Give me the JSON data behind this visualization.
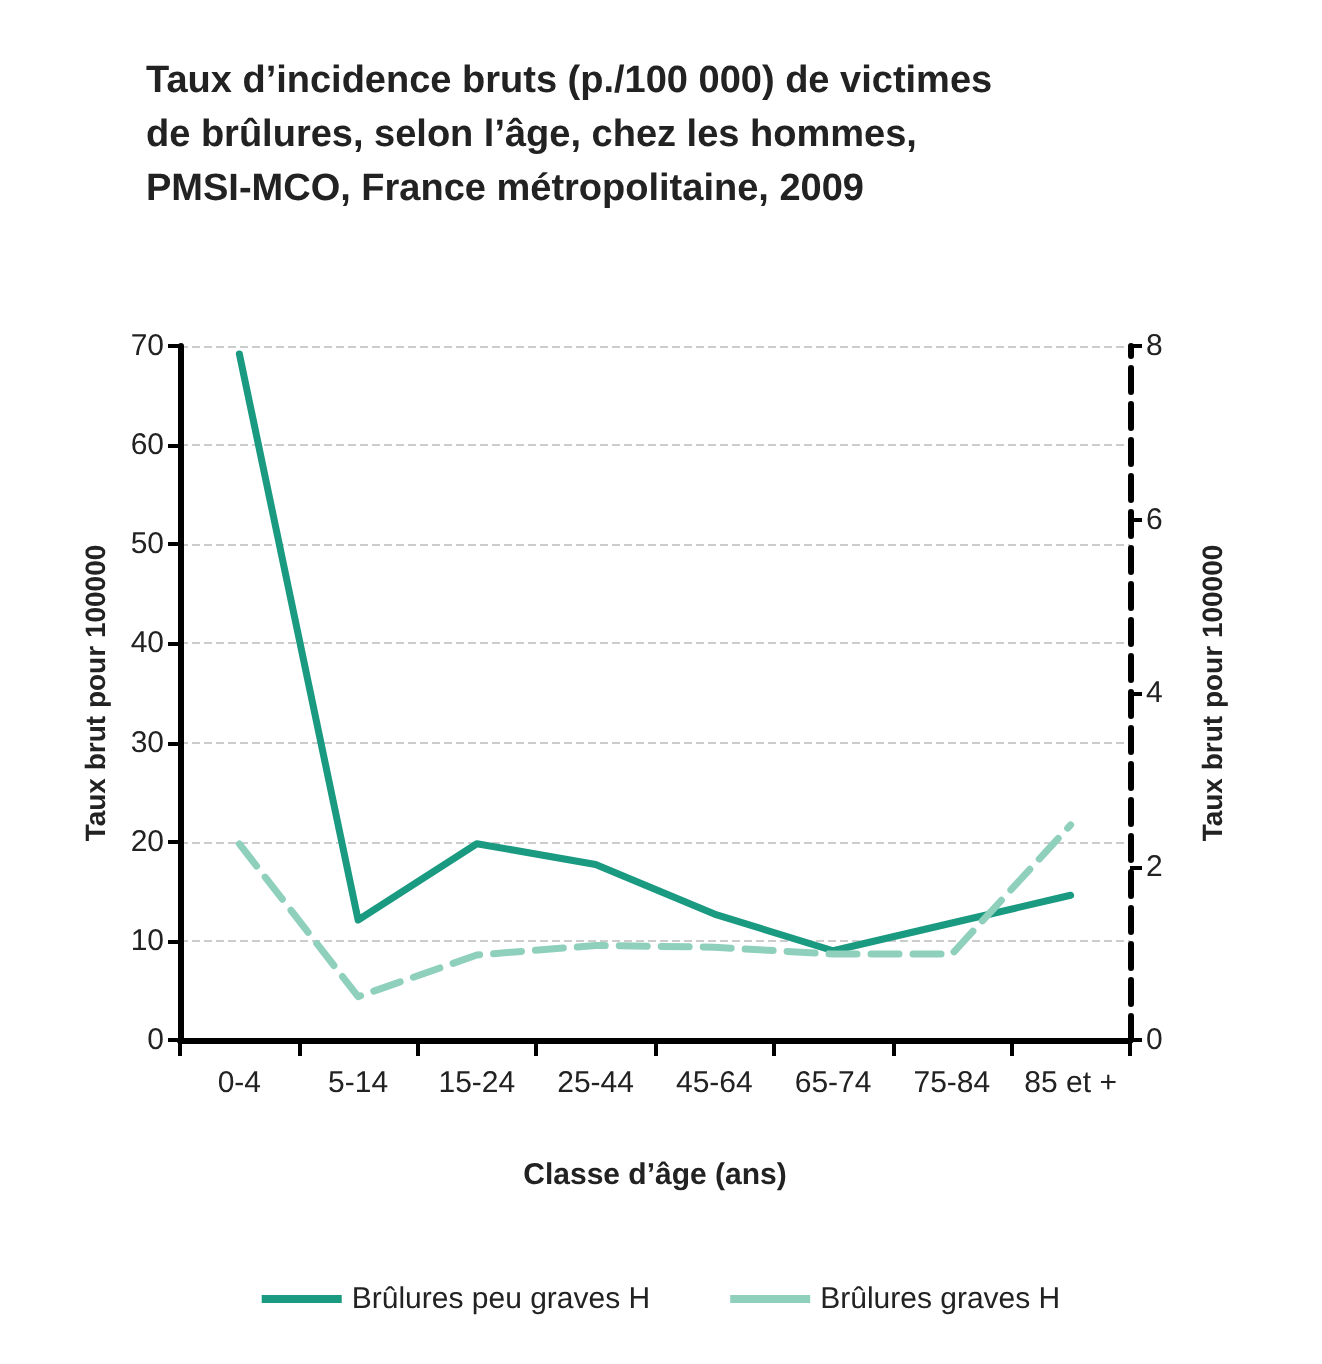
{
  "chart_data": {
    "type": "line",
    "title": "Taux d’incidence bruts (p./100 000) de victimes\nde brûlures, selon l’âge, chez les hommes,\nPMSI-MCO, France métropolitaine, 2009",
    "categories": [
      "0-4",
      "5-14",
      "15-24",
      "25-44",
      "45-64",
      "65-74",
      "75-84",
      "85 et +"
    ],
    "xlabel": "Classe d’âge (ans)",
    "ylabel": "Taux brut pour 100000",
    "y2label": "Taux brut pour 100000",
    "ylim": [
      0,
      70
    ],
    "yticks": [
      0,
      10,
      20,
      30,
      40,
      50,
      60,
      70
    ],
    "y2lim": [
      0,
      8
    ],
    "y2ticks": [
      0,
      2,
      4,
      6,
      8
    ],
    "grid": "y",
    "legend": "bottom",
    "marker": "none",
    "series": [
      {
        "name": "Brûlures peu graves H",
        "color": "#1a9a80",
        "line_style": "solid",
        "values": [
          69.2,
          12.1,
          19.8,
          17.7,
          12.7,
          9.0,
          11.8,
          14.6
        ]
      },
      {
        "name": "Brûlures graves H",
        "color": "#8fd0bc",
        "line_style": "dashed",
        "axis": "y2",
        "values": [
          2.26,
          0.5,
          0.98,
          1.09,
          1.07,
          0.99,
          0.99,
          2.48
        ]
      }
    ]
  }
}
